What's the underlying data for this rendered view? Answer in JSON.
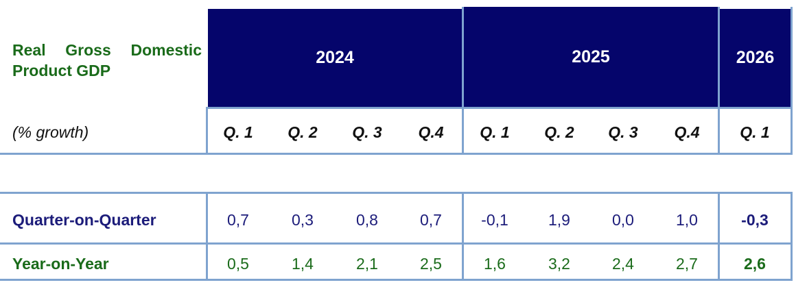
{
  "title_line1_words": [
    "Real",
    "Gross",
    "Domestic"
  ],
  "title_line2": "Product GDP",
  "subtitle": "(% growth)",
  "years": [
    "2024",
    "2025",
    "2026"
  ],
  "quarters": [
    "Q. 1",
    "Q. 2",
    "Q. 3",
    "Q.4",
    "Q. 1",
    "Q. 2",
    "Q. 3",
    "Q.4",
    "Q. 1"
  ],
  "rows": [
    {
      "label": "Quarter-on-Quarter",
      "values": [
        "0,7",
        "0,3",
        "0,8",
        "0,7",
        "-0,1",
        "1,9",
        "0,0",
        "1,0",
        "-0,3"
      ]
    },
    {
      "label": "Year-on-Year",
      "values": [
        "0,5",
        "1,4",
        "2,1",
        "2,5",
        "1,6",
        "3,2",
        "2,4",
        "2,7",
        "2,6"
      ]
    }
  ],
  "colors": {
    "header_bg": "#05056b",
    "title_green": "#1a6b1a",
    "qoq_blue": "#1c1c7a",
    "grid": "#7fa3cf"
  }
}
